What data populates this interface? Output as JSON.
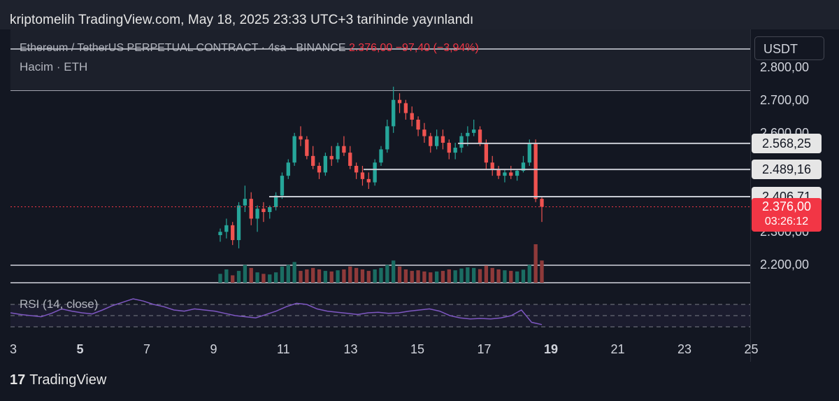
{
  "header": {
    "title": "kriptomelih TradingView.com, May 18, 2025 23:33 UTC+3 tarihinde yayınlandı"
  },
  "legend": {
    "symbol": "Ethereum / TetherUS PERPETUAL CONTRACT · 4sa · BINANCE",
    "price": "2.376,00",
    "change": "−97,40 (−3,94%)",
    "volume": "Hacim · ETH",
    "rsi": "RSI (14, close)"
  },
  "currency_button": "USDT",
  "footer": {
    "brand": "TradingView",
    "brand_mark": "17"
  },
  "colors": {
    "up": "#26a69a",
    "down": "#ef5350",
    "rsi_line": "#7e57c2",
    "background": "#131722"
  },
  "chart_data": {
    "type": "candlestick",
    "x_ticks": [
      "3",
      "5",
      "7",
      "9",
      "11",
      "13",
      "15",
      "17",
      "19",
      "21",
      "23",
      "25"
    ],
    "y_ticks": [
      "2.800,00",
      "2.700,00",
      "2.600,00",
      "2.300,00",
      "2.200,00"
    ],
    "y_range": [
      2150,
      2850
    ],
    "levels": [
      {
        "label": "2.568,25",
        "value": 2568.25
      },
      {
        "label": "2.489,16",
        "value": 2489.16
      },
      {
        "label": "2.406,71",
        "value": 2406.71
      }
    ],
    "last_price": {
      "label": "2.376,00",
      "countdown": "03:26:12",
      "value": 2376.0
    },
    "ohlc": [
      [
        2290,
        2310,
        2270,
        2300
      ],
      [
        2300,
        2340,
        2280,
        2320
      ],
      [
        2320,
        2330,
        2260,
        2275
      ],
      [
        2275,
        2390,
        2250,
        2380
      ],
      [
        2380,
        2440,
        2360,
        2400
      ],
      [
        2400,
        2420,
        2320,
        2340
      ],
      [
        2340,
        2380,
        2300,
        2370
      ],
      [
        2370,
        2390,
        2330,
        2360
      ],
      [
        2360,
        2380,
        2340,
        2375
      ],
      [
        2375,
        2420,
        2365,
        2410
      ],
      [
        2410,
        2480,
        2400,
        2470
      ],
      [
        2470,
        2520,
        2460,
        2510
      ],
      [
        2510,
        2600,
        2500,
        2590
      ],
      [
        2590,
        2620,
        2560,
        2580
      ],
      [
        2580,
        2590,
        2520,
        2530
      ],
      [
        2530,
        2560,
        2490,
        2500
      ],
      [
        2500,
        2510,
        2460,
        2480
      ],
      [
        2480,
        2540,
        2470,
        2530
      ],
      [
        2530,
        2560,
        2500,
        2520
      ],
      [
        2520,
        2570,
        2510,
        2560
      ],
      [
        2560,
        2590,
        2530,
        2540
      ],
      [
        2540,
        2560,
        2490,
        2500
      ],
      [
        2500,
        2510,
        2460,
        2480
      ],
      [
        2480,
        2500,
        2440,
        2460
      ],
      [
        2460,
        2480,
        2430,
        2450
      ],
      [
        2450,
        2520,
        2440,
        2510
      ],
      [
        2510,
        2560,
        2500,
        2550
      ],
      [
        2550,
        2640,
        2540,
        2620
      ],
      [
        2620,
        2740,
        2600,
        2700
      ],
      [
        2700,
        2720,
        2660,
        2690
      ],
      [
        2690,
        2700,
        2640,
        2660
      ],
      [
        2660,
        2680,
        2620,
        2640
      ],
      [
        2640,
        2650,
        2590,
        2610
      ],
      [
        2610,
        2630,
        2570,
        2590
      ],
      [
        2590,
        2600,
        2540,
        2560
      ],
      [
        2560,
        2610,
        2550,
        2590
      ],
      [
        2590,
        2610,
        2550,
        2570
      ],
      [
        2570,
        2580,
        2520,
        2540
      ],
      [
        2540,
        2570,
        2520,
        2555
      ],
      [
        2555,
        2600,
        2540,
        2590
      ],
      [
        2590,
        2620,
        2560,
        2600
      ],
      [
        2600,
        2640,
        2590,
        2610
      ],
      [
        2610,
        2620,
        2560,
        2570
      ],
      [
        2570,
        2580,
        2490,
        2510
      ],
      [
        2510,
        2530,
        2470,
        2490
      ],
      [
        2490,
        2500,
        2460,
        2470
      ],
      [
        2470,
        2490,
        2450,
        2480
      ],
      [
        2480,
        2500,
        2460,
        2470
      ],
      [
        2470,
        2490,
        2455,
        2485
      ],
      [
        2485,
        2530,
        2480,
        2510
      ],
      [
        2510,
        2580,
        2500,
        2570
      ],
      [
        2570,
        2580,
        2390,
        2400
      ],
      [
        2400,
        2405,
        2330,
        2376
      ]
    ],
    "volume": [
      30,
      45,
      25,
      40,
      60,
      50,
      35,
      30,
      28,
      35,
      55,
      60,
      70,
      40,
      45,
      50,
      45,
      40,
      38,
      42,
      45,
      55,
      50,
      45,
      40,
      45,
      50,
      60,
      75,
      55,
      45,
      40,
      42,
      38,
      35,
      38,
      40,
      45,
      42,
      48,
      52,
      50,
      46,
      58,
      50,
      45,
      42,
      40,
      38,
      44,
      60,
      130,
      75
    ],
    "rsi": [
      55,
      52,
      50,
      48,
      54,
      62,
      58,
      55,
      53,
      60,
      68,
      74,
      80,
      76,
      70,
      66,
      60,
      58,
      62,
      60,
      58,
      54,
      50,
      48,
      46,
      52,
      58,
      66,
      72,
      70,
      62,
      58,
      56,
      54,
      52,
      55,
      56,
      54,
      55,
      58,
      60,
      62,
      58,
      50,
      46,
      44,
      45,
      44,
      46,
      50,
      60,
      38,
      34
    ]
  }
}
